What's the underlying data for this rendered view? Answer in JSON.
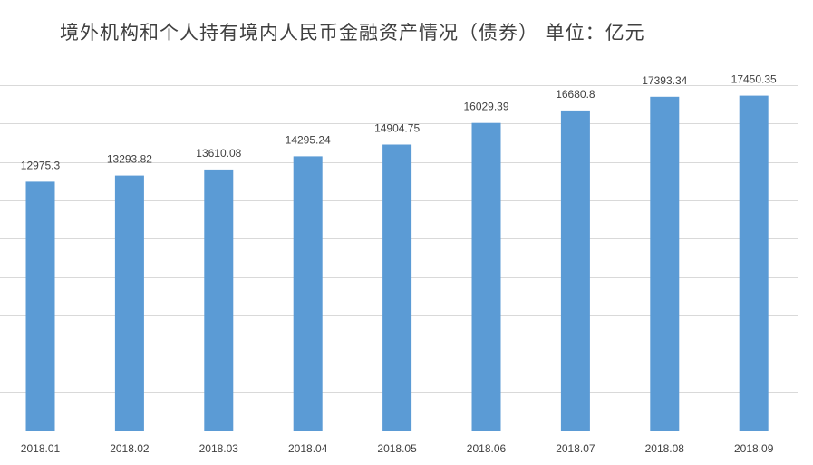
{
  "chart_data": {
    "type": "bar",
    "title": "境外机构和个人持有境内人民币金融资产情况（债券） 单位：亿元",
    "categories": [
      "2018.01",
      "2018.02",
      "2018.03",
      "2018.04",
      "2018.05",
      "2018.06",
      "2018.07",
      "2018.08",
      "2018.09"
    ],
    "values": [
      12975.3,
      13293.82,
      13610.08,
      14295.24,
      14904.75,
      16029.39,
      16680.8,
      17393.34,
      17450.35
    ],
    "value_labels": [
      "12975.3",
      "13293.82",
      "13610.08",
      "14295.24",
      "14904.75",
      "16029.39",
      "16680.8",
      "17393.34",
      "17450.35"
    ],
    "ylim": [
      0,
      18000
    ],
    "grid": true,
    "legend": "none",
    "bar_color": "#5B9BD5",
    "grid_color": "#D9D9D9"
  }
}
